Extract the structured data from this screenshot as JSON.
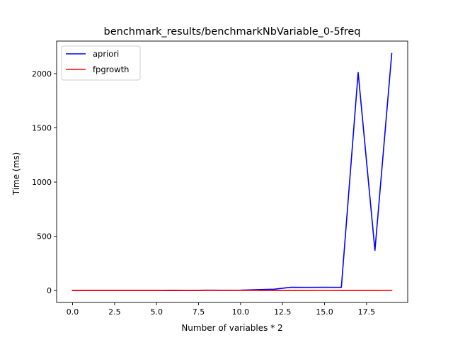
{
  "chart_data": {
    "type": "line",
    "title": "benchmark_results/benchmarkNbVariable_0-5freq",
    "xlabel": "Number of variables * 2",
    "ylabel": "Time (ms)",
    "xlim": [
      -0.95,
      19.95
    ],
    "ylim": [
      -110,
      2300
    ],
    "xticks": [
      0.0,
      2.5,
      5.0,
      7.5,
      10.0,
      12.5,
      15.0,
      17.5
    ],
    "xtick_labels": [
      "0.0",
      "2.5",
      "5.0",
      "7.5",
      "10.0",
      "12.5",
      "15.0",
      "17.5"
    ],
    "yticks": [
      0,
      500,
      1000,
      1500,
      2000
    ],
    "ytick_labels": [
      "0",
      "500",
      "1000",
      "1500",
      "2000"
    ],
    "grid": false,
    "legend_position": "top-left",
    "x": [
      0,
      1,
      2,
      3,
      4,
      5,
      6,
      7,
      8,
      9,
      10,
      11,
      12,
      13,
      14,
      15,
      16,
      17,
      18,
      19
    ],
    "series": [
      {
        "name": "apriori",
        "color": "#0000ff",
        "values": [
          1,
          1,
          1,
          1,
          1,
          1,
          2,
          1,
          3,
          2,
          3,
          8,
          12,
          30,
          29,
          30,
          29,
          2010,
          370,
          2185
        ]
      },
      {
        "name": "fpgrowth",
        "color": "#ff0000",
        "values": [
          0,
          0,
          0,
          0,
          0,
          0,
          0,
          0,
          1,
          1,
          1,
          1,
          0,
          0,
          0,
          1,
          0,
          0,
          0,
          1
        ]
      }
    ]
  }
}
